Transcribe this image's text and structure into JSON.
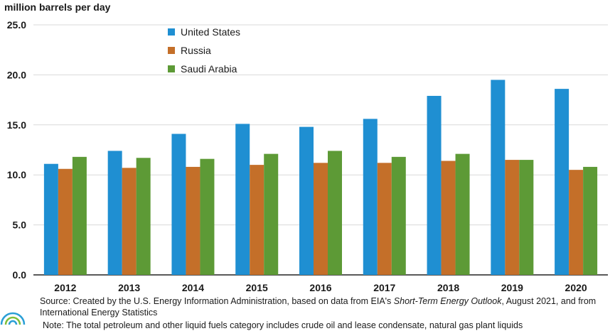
{
  "chart_data": {
    "type": "bar",
    "ylabel": "million barrels per day",
    "xlabel": "",
    "title": "",
    "ylim": [
      0,
      25
    ],
    "yticks": [
      "0.0",
      "5.0",
      "10.0",
      "15.0",
      "20.0",
      "25.0"
    ],
    "categories": [
      "2012",
      "2013",
      "2014",
      "2015",
      "2016",
      "2017",
      "2018",
      "2019",
      "2020"
    ],
    "series": [
      {
        "name": "United States",
        "color": "#1f8fd2",
        "values": [
          11.1,
          12.4,
          14.1,
          15.1,
          14.8,
          15.6,
          17.9,
          19.5,
          18.6
        ]
      },
      {
        "name": "Russia",
        "color": "#c46f29",
        "values": [
          10.6,
          10.7,
          10.8,
          11.0,
          11.2,
          11.2,
          11.4,
          11.5,
          10.5
        ]
      },
      {
        "name": "Saudi Arabia",
        "color": "#5d9a36",
        "values": [
          11.8,
          11.7,
          11.6,
          12.1,
          12.4,
          11.8,
          12.1,
          11.5,
          10.8
        ]
      }
    ],
    "grid": true,
    "legend_position": "top-left"
  },
  "footer": {
    "source_prefix": "Source: Created by the U.S. Energy Information Administration, based on data from EIA's ",
    "source_italic": "Short-Term Energy Outlook",
    "source_suffix": ", August 2021, and from International Energy Statistics",
    "note": "Note: The total petroleum and other liquid fuels category includes crude oil and lease condensate, natural gas plant liquids"
  }
}
